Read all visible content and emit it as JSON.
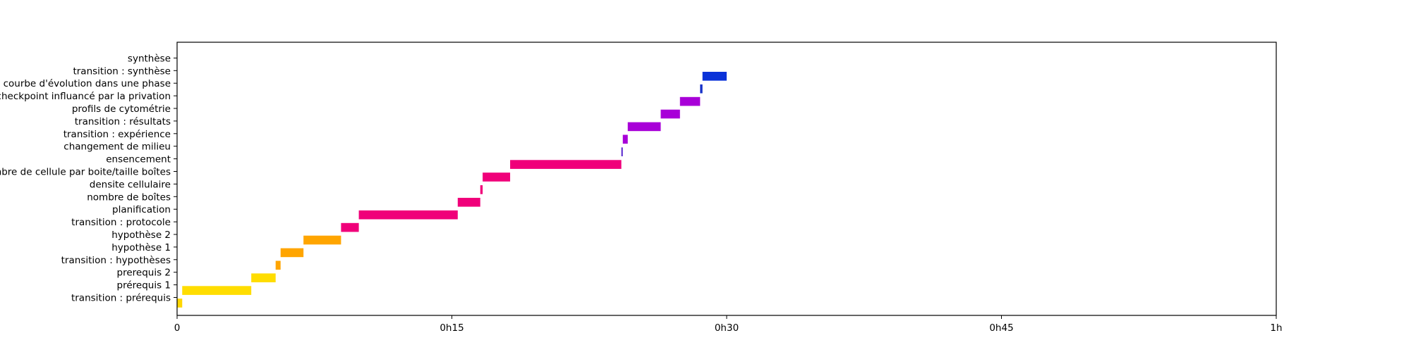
{
  "chart_data": {
    "type": "bar",
    "orientation": "horizontal",
    "title": "",
    "xlabel": "",
    "ylabel": "",
    "x_unit": "minutes",
    "xlim": [
      0,
      60
    ],
    "xticks": [
      {
        "value": 0,
        "label": "0"
      },
      {
        "value": 15,
        "label": "0h15"
      },
      {
        "value": 30,
        "label": "0h30"
      },
      {
        "value": 45,
        "label": "0h45"
      },
      {
        "value": 60,
        "label": "1h"
      }
    ],
    "grid": false,
    "tasks": [
      {
        "label": "transition : prérequis",
        "start": 0.0,
        "end": 0.28,
        "color": "#FFD700"
      },
      {
        "label": "prérequis 1",
        "start": 0.28,
        "end": 4.05,
        "color": "#FFDD00"
      },
      {
        "label": "prerequis 2",
        "start": 4.05,
        "end": 5.38,
        "color": "#FFDD00"
      },
      {
        "label": "transition : hypothèses",
        "start": 5.38,
        "end": 5.65,
        "color": "#FFA500"
      },
      {
        "label": "hypothèse 1",
        "start": 5.65,
        "end": 6.9,
        "color": "#FFA500"
      },
      {
        "label": "hypothèse 2",
        "start": 6.9,
        "end": 8.95,
        "color": "#FFA500"
      },
      {
        "label": "transition : protocole",
        "start": 8.95,
        "end": 9.92,
        "color": "#F0007A"
      },
      {
        "label": "planification",
        "start": 9.92,
        "end": 15.32,
        "color": "#F0007A"
      },
      {
        "label": "nombre de boîtes",
        "start": 15.32,
        "end": 16.55,
        "color": "#F0007A"
      },
      {
        "label": "densite cellulaire",
        "start": 16.55,
        "end": 16.68,
        "color": "#F0007A"
      },
      {
        "label": "nombre de cellule par boite/taille boîtes",
        "start": 16.68,
        "end": 18.18,
        "color": "#F0007A"
      },
      {
        "label": "ensencement",
        "start": 18.18,
        "end": 24.25,
        "color": "#F0007A"
      },
      {
        "label": "changement de milieu",
        "start": 24.25,
        "end": 24.33,
        "color": "#5B2BD0"
      },
      {
        "label": "transition : expérience",
        "start": 24.33,
        "end": 24.6,
        "color": "#A800D8"
      },
      {
        "label": "transition : résultats",
        "start": 24.6,
        "end": 26.4,
        "color": "#A800D8"
      },
      {
        "label": "profils de cytométrie",
        "start": 26.4,
        "end": 27.45,
        "color": "#A800D8"
      },
      {
        "label": "checkpoint influancé par la privation",
        "start": 27.45,
        "end": 28.55,
        "color": "#A800D8"
      },
      {
        "label": "courbe d'évolution dans une phase",
        "start": 28.55,
        "end": 28.68,
        "color": "#1530C8"
      },
      {
        "label": "transition : synthèse",
        "start": 28.68,
        "end": 30.0,
        "color": "#0A32D8"
      },
      {
        "label": "synthèse",
        "start": 30.0,
        "end": 30.0,
        "color": "#0A32D8"
      }
    ]
  }
}
